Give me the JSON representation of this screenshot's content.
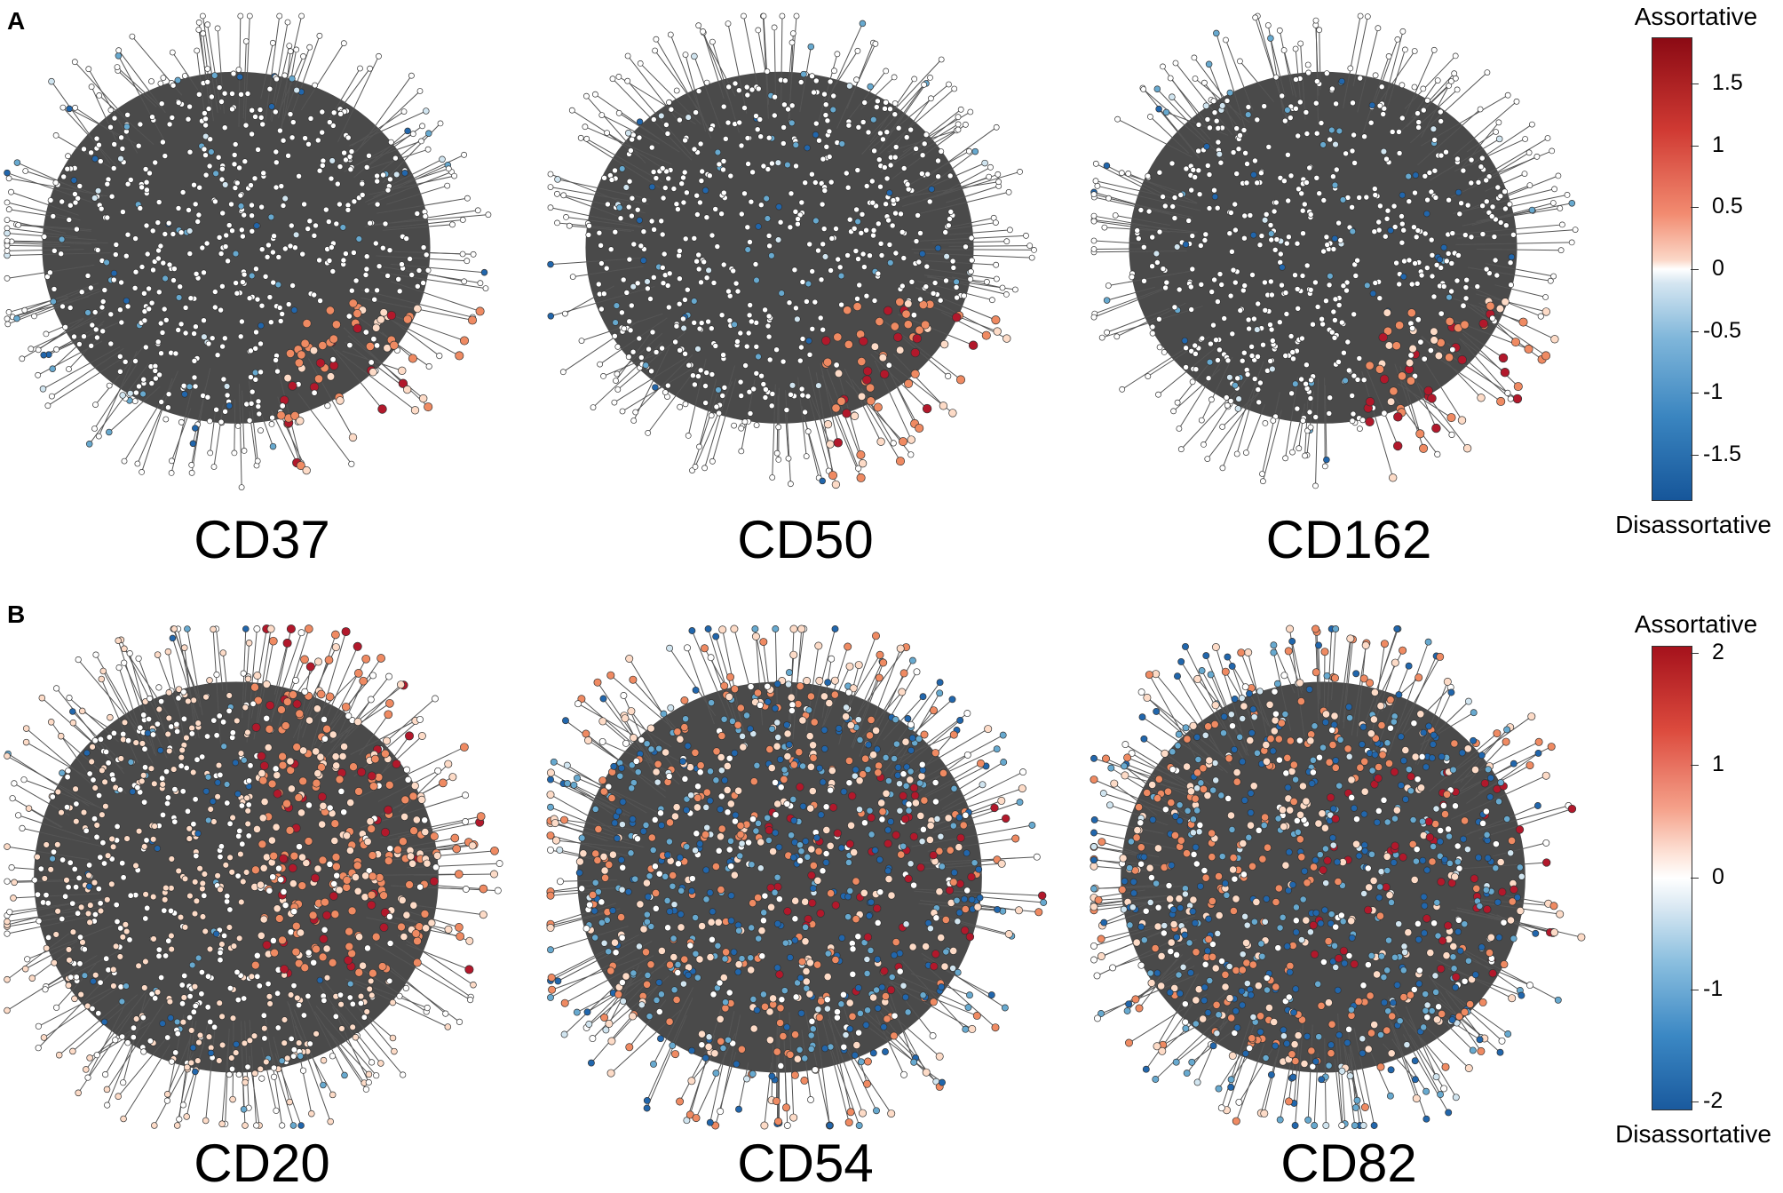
{
  "panels": [
    {
      "letter": "A",
      "networks": [
        {
          "label": "CD37",
          "seed": 11,
          "style": "cluster"
        },
        {
          "label": "CD50",
          "seed": 23,
          "style": "cluster"
        },
        {
          "label": "CD162",
          "seed": 37,
          "style": "cluster"
        }
      ],
      "colorbar": {
        "top_label": "Assortative",
        "bottom_label": "Disassortative",
        "ticks": [
          "1.5",
          "1",
          "0.5",
          "0",
          "-0.5",
          "-1",
          "-1.5"
        ]
      }
    },
    {
      "letter": "B",
      "networks": [
        {
          "label": "CD20",
          "seed": 41,
          "style": "half"
        },
        {
          "label": "CD54",
          "seed": 53,
          "style": "mixed"
        },
        {
          "label": "CD82",
          "seed": 67,
          "style": "mixed"
        }
      ],
      "colorbar": {
        "top_label": "Assortative",
        "bottom_label": "Disassortative",
        "ticks": [
          "2",
          "1",
          "0",
          "-1",
          "-2"
        ]
      }
    }
  ],
  "colors": {
    "edge": "#555555",
    "node_outline": "#333333",
    "assortative_strong": "#b2182b",
    "assortative_mid": "#ef8a62",
    "assortative_light": "#fddbc7",
    "neutral": "#ffffff",
    "disassortative_light": "#d1e5f0",
    "disassortative_mid": "#67a9cf",
    "disassortative_strong": "#2166ac"
  }
}
